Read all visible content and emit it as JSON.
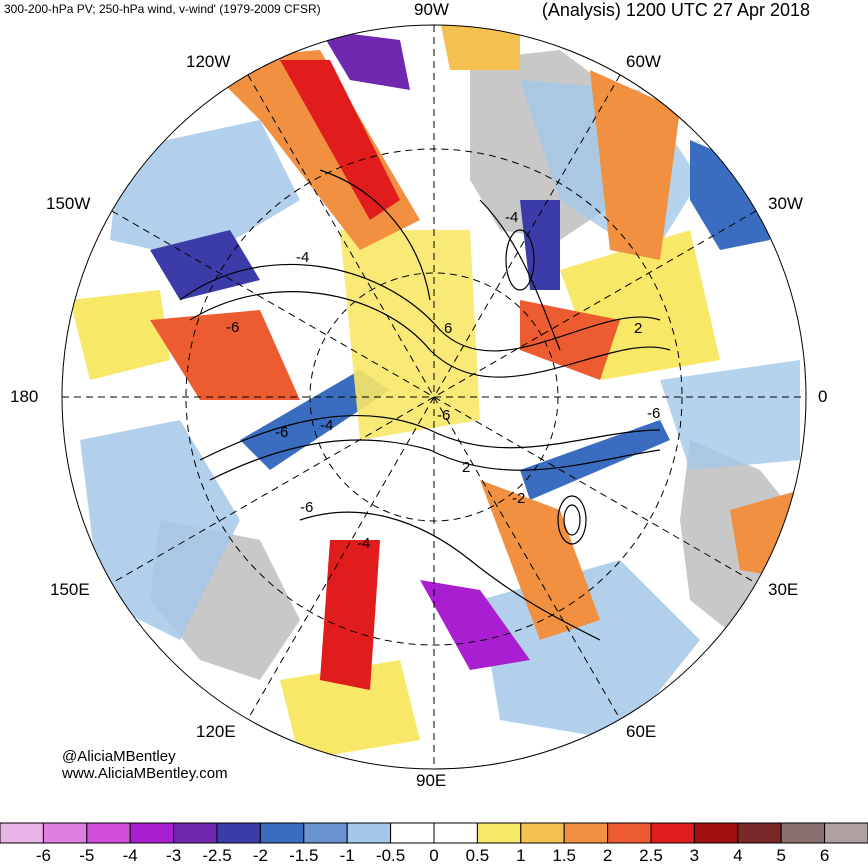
{
  "header": {
    "left": "300-200-hPa PV; 250-hPa wind, v-wind' (1979-2009 CFSR)",
    "right": "(Analysis) 1200 UTC 27 Apr 2018"
  },
  "map": {
    "projection": "north polar stereographic",
    "longitude_labels": {
      "top": "90W",
      "bottom": "90E",
      "left": "180",
      "right": "0",
      "upper_left_1": "120W",
      "upper_left_2": "150W",
      "upper_right_1": "60W",
      "upper_right_2": "30W",
      "lower_left_1": "150E",
      "lower_left_2": "120E",
      "lower_right_1": "30E",
      "lower_right_2": "60E"
    },
    "contour_labels": [
      "-4",
      "-4",
      "-6",
      "-6",
      "-4",
      "-6",
      "-4",
      "6",
      "2",
      "-2",
      "2",
      "-6",
      "-6"
    ]
  },
  "credits": {
    "line1": "@AliciaMBentley",
    "line2": "www.AliciaMBentley.com"
  },
  "colorbar": {
    "colors": [
      "#e8b4e8",
      "#e07fe0",
      "#d04ed8",
      "#a81ed0",
      "#7028b0",
      "#3c3ca8",
      "#3a6cc0",
      "#6a94d0",
      "#a4c8e8",
      "#ffffff",
      "#ffffff",
      "#f8e868",
      "#f4c050",
      "#f09040",
      "#ec5c30",
      "#e01c1c",
      "#a01010",
      "#782828",
      "#887070",
      "#b0a0a0"
    ],
    "tick_labels": [
      "-6",
      "-5",
      "-4",
      "-3",
      "-2.5",
      "-2",
      "-1.5",
      "-1",
      "-0.5",
      "0",
      "0.5",
      "1",
      "1.5",
      "2",
      "2.5",
      "3",
      "4",
      "5",
      "6"
    ]
  }
}
